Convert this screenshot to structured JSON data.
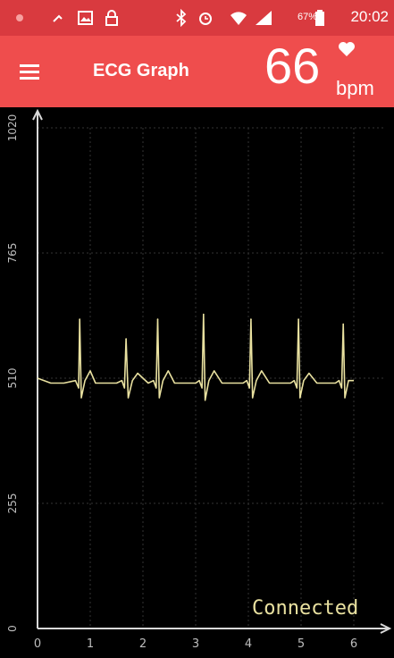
{
  "status_bar": {
    "time": "20:02",
    "battery_percent": "67%",
    "icons": [
      "notification-icon",
      "missed-call-icon",
      "image-icon",
      "lock-icon",
      "bluetooth-icon",
      "alarm-icon",
      "wifi-icon",
      "signal-icon",
      "battery-icon"
    ]
  },
  "app_bar": {
    "title": "ECG Graph",
    "heart_rate": "66",
    "heart_rate_unit": "bpm",
    "menu_icon": "menu-icon",
    "heart_icon": "heart-icon"
  },
  "colors": {
    "status_bar": "#d93a3f",
    "app_bar": "#ef4d4d",
    "plot_background": "#000000",
    "trace": "#e9e1a0",
    "axis": "#d9d9d9",
    "grid": "#333333"
  },
  "chart_data": {
    "type": "line",
    "title": "",
    "xlabel": "",
    "ylabel": "",
    "xlim": [
      0,
      6.5
    ],
    "ylim": [
      0,
      1020
    ],
    "xticks": [
      0,
      1,
      2,
      3,
      4,
      5,
      6
    ],
    "yticks": [
      0,
      255,
      510,
      765,
      1020
    ],
    "grid": true,
    "baseline": 500,
    "r_peak_times": [
      0.8,
      1.68,
      2.28,
      3.15,
      4.05,
      4.95,
      5.8
    ],
    "r_peak_values": [
      630,
      590,
      630,
      640,
      630,
      630,
      620
    ],
    "series": [
      {
        "x": [
          0.0,
          0.25,
          0.5,
          0.72,
          0.78,
          0.8,
          0.83,
          0.9,
          1.0,
          1.1,
          1.5,
          1.6,
          1.65,
          1.68,
          1.72,
          1.8,
          1.9,
          2.1,
          2.2,
          2.25,
          2.28,
          2.31,
          2.38,
          2.48,
          2.6,
          3.0,
          3.07,
          3.12,
          3.15,
          3.18,
          3.25,
          3.35,
          3.5,
          3.9,
          3.97,
          4.02,
          4.05,
          4.08,
          4.15,
          4.25,
          4.4,
          4.8,
          4.87,
          4.92,
          4.95,
          4.98,
          5.05,
          5.15,
          5.3,
          5.65,
          5.72,
          5.77,
          5.8,
          5.83,
          5.9,
          6.0
        ],
        "y": [
          510,
          500,
          500,
          505,
          490,
          630,
          470,
          505,
          525,
          500,
          500,
          505,
          490,
          590,
          470,
          505,
          520,
          500,
          505,
          490,
          630,
          470,
          505,
          525,
          500,
          500,
          505,
          490,
          640,
          465,
          505,
          525,
          500,
          500,
          505,
          490,
          630,
          470,
          505,
          525,
          500,
          500,
          505,
          490,
          630,
          470,
          505,
          520,
          500,
          500,
          505,
          490,
          620,
          470,
          505,
          505
        ]
      }
    ]
  },
  "connection_status": "Connected"
}
